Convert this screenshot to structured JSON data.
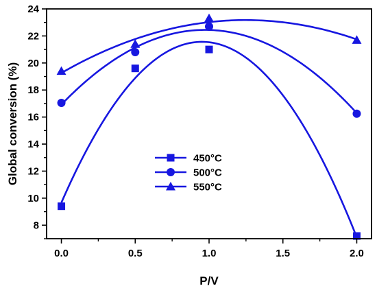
{
  "chart_data": {
    "type": "line",
    "title": "",
    "xlabel": "P/V",
    "ylabel": "Global conversion (%)",
    "x": [
      0.0,
      0.5,
      1.0,
      2.0
    ],
    "xlim": [
      -0.1,
      2.1
    ],
    "ylim": [
      7,
      24
    ],
    "xticks": [
      "0.0",
      "0.5",
      "1.0",
      "1.5",
      "2.0"
    ],
    "yticks": [
      "8",
      "10",
      "12",
      "14",
      "16",
      "18",
      "20",
      "22",
      "24"
    ],
    "grid": false,
    "legend_position": "center-left",
    "line_color": "#1717e0",
    "series": [
      {
        "name": "450°C",
        "marker": "square",
        "values": [
          9.4,
          19.6,
          21.0,
          7.2
        ]
      },
      {
        "name": "500°C",
        "marker": "circle",
        "values": [
          17.05,
          20.8,
          22.7,
          16.25
        ]
      },
      {
        "name": "550°C",
        "marker": "triangle",
        "values": [
          19.4,
          21.4,
          23.3,
          21.7
        ]
      }
    ]
  }
}
